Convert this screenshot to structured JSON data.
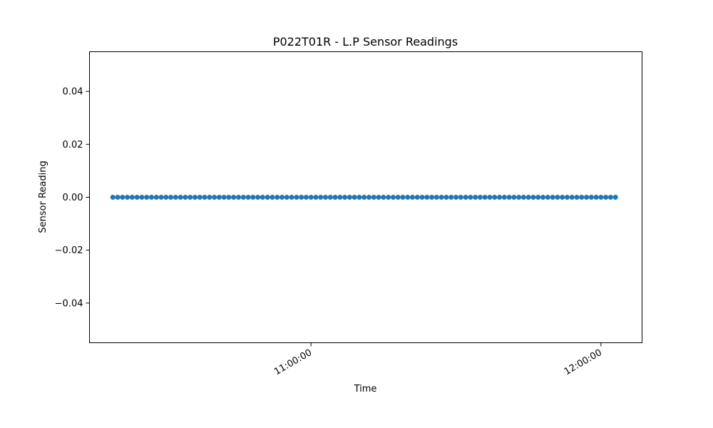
{
  "chart_data": {
    "type": "scatter",
    "title": "P022T01R - L.P Sensor Readings",
    "xlabel": "Time",
    "ylabel": "Sensor Reading",
    "x_format": "HH:MM:SS",
    "x_start": "10:19:00",
    "x_end": "12:03:00",
    "x_step_seconds": 60,
    "y_constant": 0.0,
    "xlim": [
      "10:14:10",
      "12:08:30"
    ],
    "ylim": [
      -0.055,
      0.055
    ],
    "x_ticks": [
      "11:00:00",
      "12:00:00"
    ],
    "y_ticks": [
      0.04,
      0.02,
      0.0,
      -0.02,
      -0.04
    ],
    "y_tick_labels": [
      "0.04",
      "0.02",
      "0.00",
      "−0.02",
      "−0.04"
    ],
    "grid": false,
    "marker_color": "#1f77b4"
  }
}
